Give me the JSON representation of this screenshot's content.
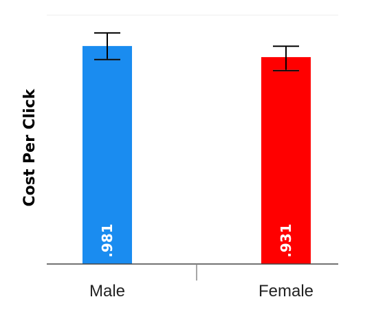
{
  "chart_data": {
    "type": "bar",
    "categories": [
      "Male",
      "Female"
    ],
    "values": [
      0.981,
      0.931
    ],
    "value_labels": [
      ".981",
      ".931"
    ],
    "error_bars": [
      [
        0.92,
        1.04
      ],
      [
        0.87,
        0.98
      ]
    ],
    "colors": [
      "#1a8cf0",
      "#ff0000"
    ],
    "title": "",
    "xlabel": "",
    "ylabel": "Cost Per Click",
    "ylim": [
      0,
      1.12
    ],
    "grid": false
  }
}
